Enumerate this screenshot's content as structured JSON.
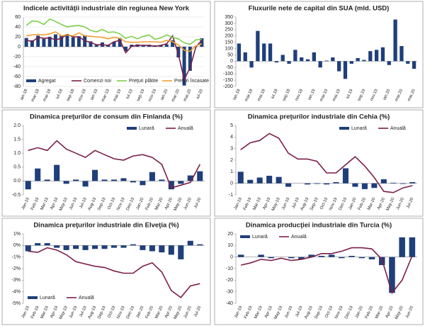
{
  "chart_data": [
    {
      "type": "combo",
      "title": "Indicele activităţii industriale din regiunea New York",
      "categories": [
        "ian-18",
        null,
        "mar-18",
        null,
        "mai-18",
        null,
        "iul-18",
        null,
        "sep-18",
        null,
        "nov-18",
        null,
        "ian-19",
        null,
        "mar-19",
        null,
        "mai-19",
        null,
        "iul-19",
        null,
        "sep-19",
        null,
        "nov-19",
        null,
        "ian-20",
        null,
        "mar-20",
        null,
        "mai-20",
        null,
        "iul-20"
      ],
      "series": [
        {
          "name": "Agregat",
          "type": "bar",
          "color": "#1f3f7a",
          "values": [
            17.7,
            13.1,
            22.5,
            15.8,
            20.1,
            25,
            22.6,
            25.6,
            19,
            21.1,
            23.3,
            10.9,
            3.9,
            8.8,
            3.7,
            10.1,
            17.8,
            -8.6,
            4.3,
            4.8,
            2,
            4,
            2.9,
            3.5,
            4.8,
            12.9,
            -21.5,
            -78.2,
            -48.5,
            -0.2,
            17.2
          ]
        },
        {
          "name": "Comenzi noi",
          "type": "line",
          "color": "#7a1f4a",
          "values": [
            14,
            10,
            19,
            17,
            18,
            14,
            17,
            25,
            20,
            20,
            12,
            9,
            4,
            4,
            3,
            10,
            13,
            -12,
            1,
            3,
            3,
            3,
            1,
            3,
            6,
            22,
            -15,
            -66,
            -42,
            0,
            13
          ]
        },
        {
          "name": "Preţuri plătite",
          "type": "line",
          "color": "#7ccf4a",
          "values": [
            43,
            52,
            51,
            45,
            56,
            51,
            45,
            40,
            42,
            43,
            40,
            33,
            30,
            35,
            29,
            30,
            26,
            17,
            21,
            16,
            21,
            24,
            15,
            18,
            24,
            19,
            16,
            8,
            5,
            14,
            15
          ]
        },
        {
          "name": "Preţuri încasate",
          "type": "line",
          "color": "#f0a030",
          "values": [
            22,
            24,
            25,
            24,
            26,
            30,
            22,
            24,
            22,
            28,
            22,
            21,
            20,
            19,
            16,
            19,
            17,
            10,
            9,
            9,
            10,
            10,
            10,
            9,
            13,
            10,
            4,
            -7,
            -9,
            2,
            6
          ]
        }
      ],
      "ylim": [
        -80,
        60
      ],
      "yticks": [
        -80,
        -60,
        -40,
        -20,
        0,
        20,
        40,
        60
      ],
      "grid": true,
      "legend": "bottom"
    },
    {
      "type": "bar",
      "title": "Fluxurile nete de capital din SUA (mld. USD)",
      "categories": [
        "ian.18",
        null,
        "mar.18",
        null,
        "mai.18",
        null,
        "iul.18",
        null,
        "sep.18",
        null,
        "nov.18",
        null,
        "ian.19",
        null,
        "mar.19",
        null,
        "mai.19",
        null,
        "iul.19",
        null,
        "sep.19",
        null,
        "nov.19",
        null,
        "ian.20",
        null,
        "mar.20",
        null,
        "mai.20"
      ],
      "series": [
        {
          "name": null,
          "type": "bar",
          "color": "#1f3f7a",
          "values": [
            140,
            70,
            -50,
            240,
            140,
            140,
            -10,
            50,
            -20,
            90,
            30,
            15,
            70,
            -50,
            5,
            30,
            -80,
            -140,
            -20,
            25,
            10,
            80,
            90,
            110,
            -30,
            330,
            120,
            -20,
            -60
          ]
        }
      ],
      "ylim": [
        -200,
        350
      ],
      "yticks": [
        -200,
        -150,
        -100,
        -50,
        0,
        50,
        100,
        150,
        200,
        250,
        300,
        350
      ],
      "grid": false,
      "legend": null
    },
    {
      "type": "combo",
      "title": "Dinamica preţurilor de consum din Finlanda (%)",
      "categories": [
        "Jan-19",
        "Feb-19",
        "Mar-19",
        "Apr-19",
        "May-19",
        "Jun-19",
        "Jul-19",
        "Aug-19",
        "Sep-19",
        "Oct-19",
        "Nov-19",
        "Dec-19",
        "Jan-20",
        "Feb-20",
        "Mar-20",
        "Apr-20",
        "May-20",
        "Jun-20",
        "Jul-20"
      ],
      "series": [
        {
          "name": "Lunară",
          "type": "bar",
          "color": "#1f3f7a",
          "values": [
            -0.3,
            0.45,
            0.05,
            0.58,
            -0.1,
            0.05,
            -0.2,
            0.4,
            0.05,
            0.05,
            0.1,
            -0.05,
            -0.15,
            0.32,
            0.05,
            -0.3,
            -0.1,
            0.2,
            0.35
          ]
        },
        {
          "name": "Anuală",
          "type": "line",
          "color": "#7a1f4a",
          "values": [
            1.1,
            1.2,
            1.1,
            1.45,
            1.15,
            1.0,
            0.85,
            1.1,
            0.95,
            0.8,
            0.75,
            0.9,
            0.95,
            0.85,
            0.6,
            -0.25,
            -0.15,
            -0.05,
            0.6
          ]
        }
      ],
      "ylim": [
        -0.5,
        2.0
      ],
      "yticks": [
        -0.5,
        {
          "value": 0,
          "label": "0.0"
        },
        0.5,
        {
          "value": 1,
          "label": "1.0"
        },
        1.5,
        {
          "value": 2,
          "label": "2.0"
        }
      ],
      "grid": false,
      "legend": "top-right"
    },
    {
      "type": "combo",
      "title": "Dinamica preţurilor industriale din Cehia (%)",
      "categories": [
        "Jan-19",
        "Feb-19",
        "Mar-19",
        "Apr-19",
        "May-19",
        "Jun-19",
        "Jul-19",
        "Aug-19",
        "Sep-19",
        "Oct-19",
        "Nov-19",
        "Dec-19",
        "Jan-20",
        "Feb-20",
        "Mar-20",
        "Apr-20",
        "May-20",
        "Jun-20",
        "Jul-20"
      ],
      "series": [
        {
          "name": "Lunară",
          "type": "bar",
          "color": "#1f3f7a",
          "values": [
            1.0,
            0.3,
            0.5,
            0.65,
            0.55,
            -0.3,
            0.0,
            -0.1,
            -0.05,
            -0.1,
            0.1,
            1.3,
            -0.3,
            -0.5,
            -0.4,
            0.35,
            0.05,
            -0.05,
            0.1
          ]
        },
        {
          "name": "Anuală",
          "type": "line",
          "color": "#7a1f4a",
          "values": [
            2.9,
            3.5,
            3.7,
            4.3,
            3.9,
            2.6,
            2.1,
            2.1,
            1.9,
            0.9,
            0.9,
            1.6,
            2.3,
            1.5,
            0.5,
            -0.7,
            -0.8,
            -0.4,
            -0.2
          ]
        }
      ],
      "ylim": [
        -1,
        5
      ],
      "yticks": [
        -1,
        0,
        1,
        2,
        3,
        4,
        5
      ],
      "grid": false,
      "legend": "top-right"
    },
    {
      "type": "combo",
      "title": "Dinamica preţurilor industriale din Elveţia (%)",
      "categories": [
        "Jan-19",
        "Feb-19",
        "Mar-19",
        "Apr-19",
        "May-19",
        "Jun-19",
        "Jul-19",
        "Aug-19",
        "Sep-19",
        "Oct-19",
        "Nov-19",
        "Dec-19",
        "Jan-20",
        "Feb-20",
        "Mar-20",
        "Apr-20",
        "May-20",
        "Jun-20",
        "Jul-20"
      ],
      "series": [
        {
          "name": "Lunară",
          "type": "bar",
          "color": "#1f3f7a",
          "values": [
            -0.5,
            0.2,
            0.2,
            -0.2,
            -0.4,
            -0.3,
            -0.4,
            -0.3,
            -0.3,
            -0.2,
            -0.2,
            0.1,
            -0.4,
            -0.5,
            -0.6,
            -0.8,
            -1.2,
            0.4,
            0.1
          ]
        },
        {
          "name": "Anuală",
          "type": "line",
          "color": "#7a1f4a",
          "values": [
            -0.5,
            -0.6,
            -0.2,
            -0.4,
            -0.8,
            -1.4,
            -1.6,
            -1.8,
            -1.9,
            -2.2,
            -2.4,
            -2.4,
            -1.8,
            -1.5,
            -2.3,
            -3.9,
            -4.5,
            -3.5,
            -3.3
          ]
        }
      ],
      "ylim": [
        -5,
        1
      ],
      "yticks": [
        {
          "value": 1,
          "label": "1%"
        },
        {
          "value": 0,
          "label": "0%"
        },
        {
          "value": -1,
          "label": "-1%"
        },
        {
          "value": -2,
          "label": "-2%"
        },
        {
          "value": -3,
          "label": "-3%"
        },
        {
          "value": -4,
          "label": "-4%"
        },
        {
          "value": -5,
          "label": "-5%"
        }
      ],
      "grid": false,
      "legend": "bottom-left"
    },
    {
      "type": "combo",
      "title": "Dinamica producţiei industriale din Turcia (%)",
      "categories": [
        "Jan-19",
        "Feb-19",
        "Mar-19",
        "Apr-19",
        "May-19",
        "Jun-19",
        "Jul-19",
        "Aug-19",
        "Sep-19",
        "Oct-19",
        "Nov-19",
        "Dec-19",
        "Jan-20",
        "Feb-20",
        "Mar-20",
        "Apr-20",
        "May-20",
        "Jun-20"
      ],
      "series": [
        {
          "name": "Lunară",
          "type": "bar",
          "color": "#1f3f7a",
          "values": [
            2,
            0,
            2,
            -1,
            0,
            -1,
            -2,
            2,
            1,
            2,
            -1,
            1,
            -1,
            -2,
            -7,
            -31,
            17,
            17
          ]
        },
        {
          "name": "Anuală",
          "type": "line",
          "color": "#7a1f4a",
          "values": [
            -7,
            -5,
            -2,
            -3,
            -1,
            -3,
            -2,
            0,
            3,
            3,
            5,
            8,
            8,
            7,
            -2,
            -31,
            -20,
            1
          ]
        }
      ],
      "ylim": [
        -40,
        20
      ],
      "yticks": [
        -40,
        -30,
        -20,
        -10,
        0,
        10,
        20
      ],
      "grid": false,
      "legend": "top-left"
    }
  ]
}
